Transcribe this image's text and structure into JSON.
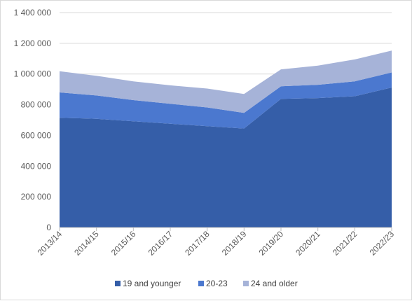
{
  "chart_data": {
    "type": "area",
    "stacked": true,
    "categories": [
      "2013/14",
      "2014/15",
      "2015/16",
      "2016/17",
      "2017/18",
      "2018/19",
      "2019/20",
      "2020/21",
      "2021/22",
      "2022/23"
    ],
    "series": [
      {
        "name": "19 and younger",
        "color": "#355ea8",
        "values": [
          715000,
          708000,
          692000,
          676000,
          660000,
          645000,
          838000,
          843000,
          855000,
          912000
        ]
      },
      {
        "name": "20-23",
        "color": "#4b78cf",
        "values": [
          165000,
          152000,
          138000,
          130000,
          122000,
          102000,
          82000,
          87000,
          97000,
          98000
        ]
      },
      {
        "name": "24 and older",
        "color": "#a6b3d8",
        "values": [
          138000,
          128000,
          122000,
          120000,
          123000,
          123000,
          110000,
          125000,
          143000,
          143000
        ]
      }
    ],
    "y_ticks": [
      "0",
      "200 000",
      "400 000",
      "600 000",
      "800 000",
      "1 000 000",
      "1 200 000",
      "1 400 000"
    ],
    "ylim": [
      0,
      1400000
    ],
    "y_step": 200000,
    "grid": true,
    "legend_position": "bottom",
    "title": "",
    "xlabel": "",
    "ylabel": ""
  }
}
